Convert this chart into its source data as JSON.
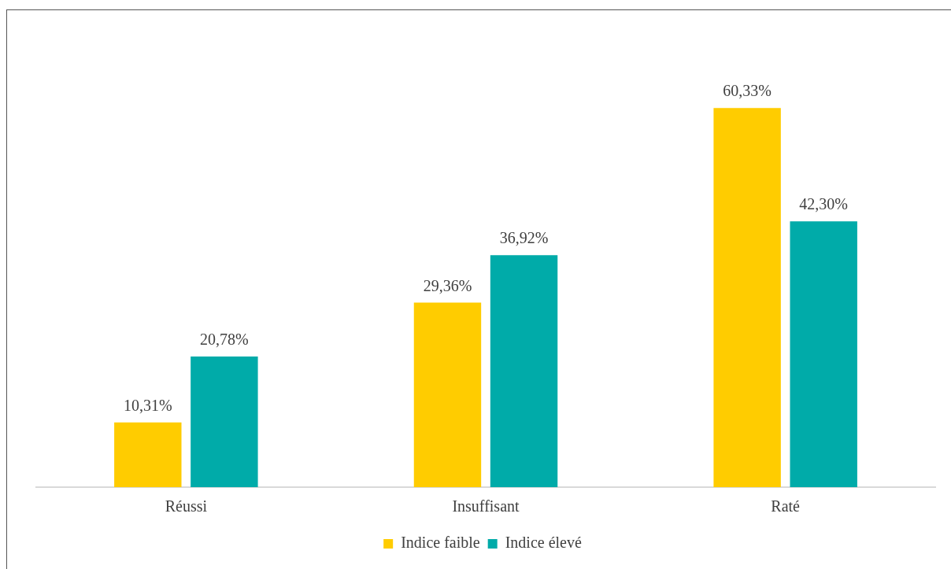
{
  "chart_data": {
    "type": "bar",
    "categories": [
      "Réussi",
      "Insuffisant",
      "Raté"
    ],
    "series": [
      {
        "name": "Indice faible",
        "color": "#ffcc00",
        "values": [
          10.31,
          29.36,
          60.33
        ],
        "value_labels": [
          "10,31%",
          "29,36%",
          "60,33%"
        ]
      },
      {
        "name": "Indice élevé",
        "color": "#00aba9",
        "values": [
          20.78,
          36.92,
          42.3
        ],
        "value_labels": [
          "20,78%",
          "36,92%",
          "42,30%"
        ]
      }
    ],
    "relative": false,
    "grid": false,
    "legend": "bottom"
  }
}
